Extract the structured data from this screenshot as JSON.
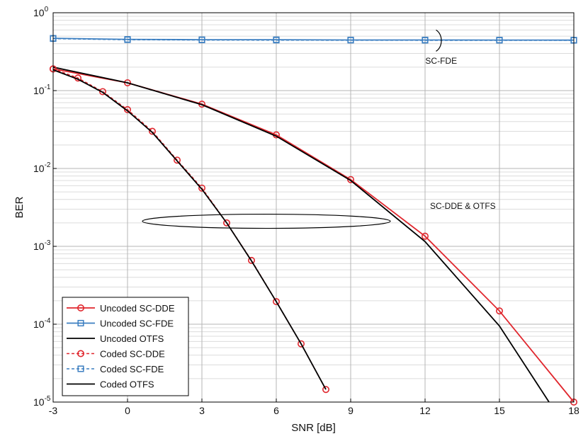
{
  "chart_data": {
    "type": "line",
    "xlabel": "SNR [dB]",
    "ylabel": "BER",
    "xlim": [
      -3,
      18
    ],
    "ylim": [
      1e-05,
      1
    ],
    "y_scale": "log",
    "x_ticks": [
      -3,
      0,
      3,
      6,
      9,
      12,
      15,
      18
    ],
    "x_tick_labels": [
      "-3",
      "0",
      "3",
      "6",
      "9",
      "12",
      "15",
      "18"
    ],
    "y_ticks": [
      1e-05,
      0.0001,
      0.001,
      0.01,
      0.1,
      1
    ],
    "y_tick_labels": [
      {
        "base": "10",
        "exp": "-5"
      },
      {
        "base": "10",
        "exp": "-4"
      },
      {
        "base": "10",
        "exp": "-3"
      },
      {
        "base": "10",
        "exp": "-2"
      },
      {
        "base": "10",
        "exp": "-1"
      },
      {
        "base": "10",
        "exp": "0"
      }
    ],
    "grid": true,
    "legend_position": "bottom-left",
    "annotations": [
      {
        "text": "SC-FDE",
        "x": 12.65,
        "y": 0.24
      },
      {
        "text": "SC-DDE & OTFS",
        "x": 12.2,
        "y": 0.0033
      }
    ],
    "series": [
      {
        "name": "Uncoded SC-DDE",
        "color": "#e0262d",
        "dash": "solid",
        "marker": "circle",
        "x": [
          -3,
          0,
          3,
          6,
          9,
          12,
          15,
          18
        ],
        "y": [
          0.19,
          0.126,
          0.067,
          0.027,
          0.0072,
          0.00135,
          0.000148,
          1e-05
        ]
      },
      {
        "name": "Uncoded SC-FDE",
        "color": "#3c7fc1",
        "dash": "solid",
        "marker": "square",
        "x": [
          -3,
          0,
          3,
          6,
          9,
          12,
          15,
          18
        ],
        "y": [
          0.47,
          0.455,
          0.45,
          0.45,
          0.447,
          0.447,
          0.446,
          0.445
        ]
      },
      {
        "name": "Uncoded OTFS",
        "color": "#000000",
        "dash": "solid",
        "marker": "none",
        "x": [
          -3,
          0,
          3,
          6,
          9,
          12,
          15,
          17
        ],
        "y": [
          0.2,
          0.126,
          0.066,
          0.026,
          0.007,
          0.00115,
          9.5e-05,
          1e-05
        ]
      },
      {
        "name": "Coded SC-DDE",
        "color": "#e0262d",
        "dash": "dashed",
        "marker": "circle",
        "x": [
          -3,
          -2,
          -1,
          0,
          1,
          2,
          3,
          4,
          5,
          6,
          7,
          8
        ],
        "y": [
          0.19,
          0.145,
          0.097,
          0.057,
          0.03,
          0.0128,
          0.0056,
          0.002,
          0.00066,
          0.000195,
          5.6e-05,
          1.45e-05
        ]
      },
      {
        "name": "Coded SC-FDE",
        "color": "#3c7fc1",
        "dash": "dashed",
        "marker": "square",
        "x": [
          -3,
          0,
          3,
          6,
          9,
          12,
          15,
          18
        ],
        "y": [
          0.465,
          0.45,
          0.447,
          0.445,
          0.444,
          0.443,
          0.443,
          0.442
        ]
      },
      {
        "name": "Coded OTFS",
        "color": "#000000",
        "dash": "solid",
        "marker": "none",
        "x": [
          -3,
          -2,
          -1,
          0,
          1,
          2,
          3,
          4,
          5,
          6,
          7,
          8
        ],
        "y": [
          0.185,
          0.14,
          0.095,
          0.055,
          0.029,
          0.0125,
          0.0054,
          0.002,
          0.00065,
          0.000195,
          5.6e-05,
          1.45e-05
        ]
      }
    ]
  }
}
